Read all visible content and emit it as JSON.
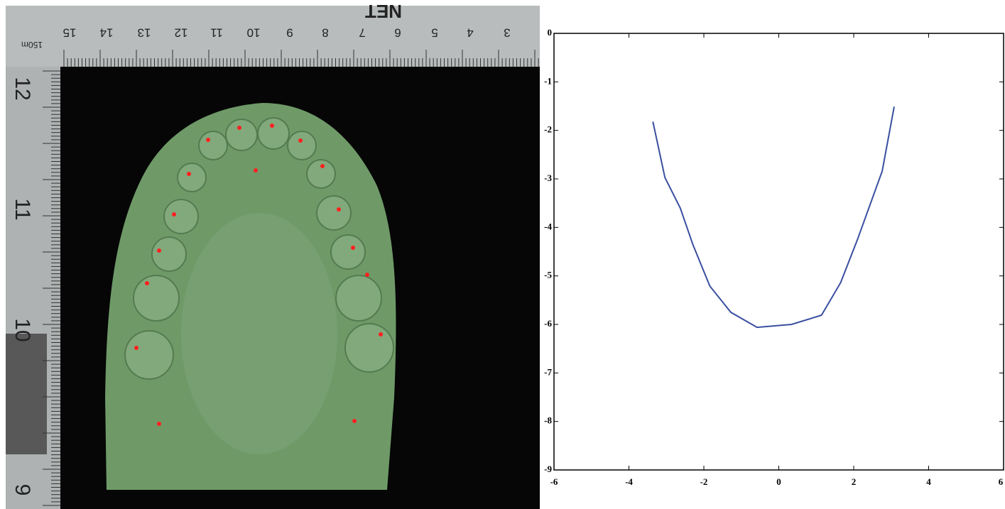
{
  "photo": {
    "ruler_top_labels": [
      "15",
      "14",
      "13",
      "12",
      "11",
      "10",
      "9",
      "8",
      "7",
      "6",
      "5",
      "4",
      "3"
    ],
    "ruler_unit": "150m",
    "ruler_brand": "NET",
    "ruler_left_labels": [
      "12",
      "11",
      "10",
      "9"
    ]
  },
  "chart_data": {
    "type": "line",
    "x": [
      -3.36,
      -3.04,
      -2.63,
      -2.29,
      -1.84,
      -1.28,
      -0.58,
      0.34,
      1.14,
      1.65,
      2.1,
      2.76,
      3.08
    ],
    "series": [
      {
        "color": "#3a4fa0",
        "values": [
          -1.82,
          -2.97,
          -3.6,
          -4.36,
          -5.21,
          -5.75,
          -6.06,
          -6.0,
          -5.81,
          -5.14,
          -4.25,
          -2.84,
          -1.51
        ]
      }
    ],
    "xlim": [
      -6,
      6
    ],
    "xticks": [
      -6,
      -4,
      -2,
      0,
      2,
      4,
      6
    ],
    "ylim": [
      -9,
      0
    ],
    "yticks": [
      0,
      -1,
      -2,
      -3,
      -4,
      -5,
      -6,
      -7,
      -8,
      -9
    ]
  }
}
